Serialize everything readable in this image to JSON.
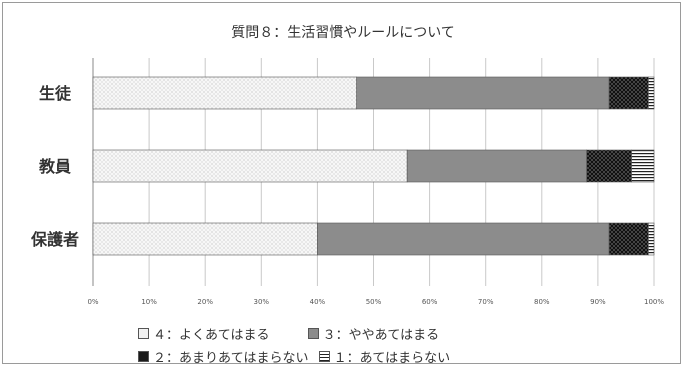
{
  "chart_data": {
    "type": "bar",
    "orientation": "horizontal",
    "stacked": true,
    "percent_stacked": true,
    "title": "質問８：生活習慣やルールについて",
    "categories": [
      "生徒",
      "教員",
      "保護者"
    ],
    "series": [
      {
        "name": "４：よくあてはまる",
        "values": [
          47,
          56,
          40
        ],
        "color": "#f2f2f2",
        "pattern": "dots"
      },
      {
        "name": "３：ややあてはまる",
        "values": [
          45,
          32,
          52
        ],
        "color": "#8c8c8c",
        "pattern": "solid"
      },
      {
        "name": "２：あまりあてはまらない",
        "values": [
          7,
          8,
          7
        ],
        "color": "#1a1a1a",
        "pattern": "checker"
      },
      {
        "name": "１：あてはまらない",
        "values": [
          1,
          4,
          1
        ],
        "color": "#ffffff",
        "pattern": "hstripes"
      }
    ],
    "xlim": [
      0,
      100
    ],
    "x_ticks": [
      "0%",
      "10%",
      "20%",
      "30%",
      "40%",
      "50%",
      "60%",
      "70%",
      "80%",
      "90%",
      "100%"
    ],
    "grid": true,
    "legend_position": "bottom"
  }
}
